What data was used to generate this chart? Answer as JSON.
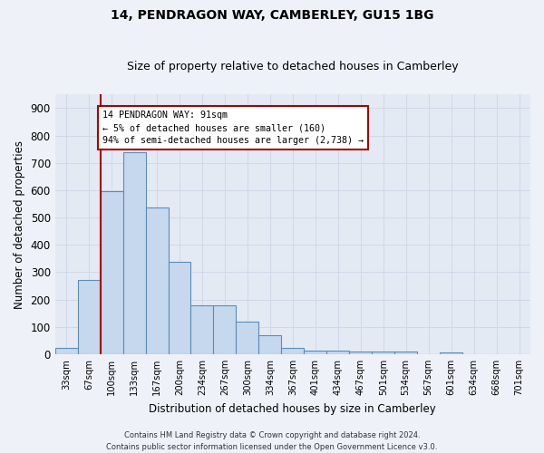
{
  "title": "14, PENDRAGON WAY, CAMBERLEY, GU15 1BG",
  "subtitle": "Size of property relative to detached houses in Camberley",
  "xlabel": "Distribution of detached houses by size in Camberley",
  "ylabel": "Number of detached properties",
  "categories": [
    "33sqm",
    "67sqm",
    "100sqm",
    "133sqm",
    "167sqm",
    "200sqm",
    "234sqm",
    "267sqm",
    "300sqm",
    "334sqm",
    "367sqm",
    "401sqm",
    "434sqm",
    "467sqm",
    "501sqm",
    "534sqm",
    "567sqm",
    "601sqm",
    "634sqm",
    "668sqm",
    "701sqm"
  ],
  "values": [
    22,
    270,
    595,
    740,
    535,
    338,
    178,
    178,
    118,
    68,
    22,
    13,
    13,
    9,
    9,
    9,
    0,
    8,
    0,
    0,
    0
  ],
  "bar_color": "#c5d8ed",
  "bar_edge_color": "#5b8db8",
  "grid_color": "#d0d8e8",
  "vline_color": "#aa0000",
  "annotation_text": "14 PENDRAGON WAY: 91sqm\n← 5% of detached houses are smaller (160)\n94% of semi-detached houses are larger (2,738) →",
  "annotation_box_color": "#ffffff",
  "annotation_box_edge_color": "#aa0000",
  "ylim": [
    0,
    950
  ],
  "yticks": [
    0,
    100,
    200,
    300,
    400,
    500,
    600,
    700,
    800,
    900
  ],
  "footer_line1": "Contains HM Land Registry data © Crown copyright and database right 2024.",
  "footer_line2": "Contains public sector information licensed under the Open Government Licence v3.0.",
  "bg_color": "#eef2f8",
  "plot_bg_color": "#e4eaf4",
  "title_fontsize": 10,
  "subtitle_fontsize": 9
}
